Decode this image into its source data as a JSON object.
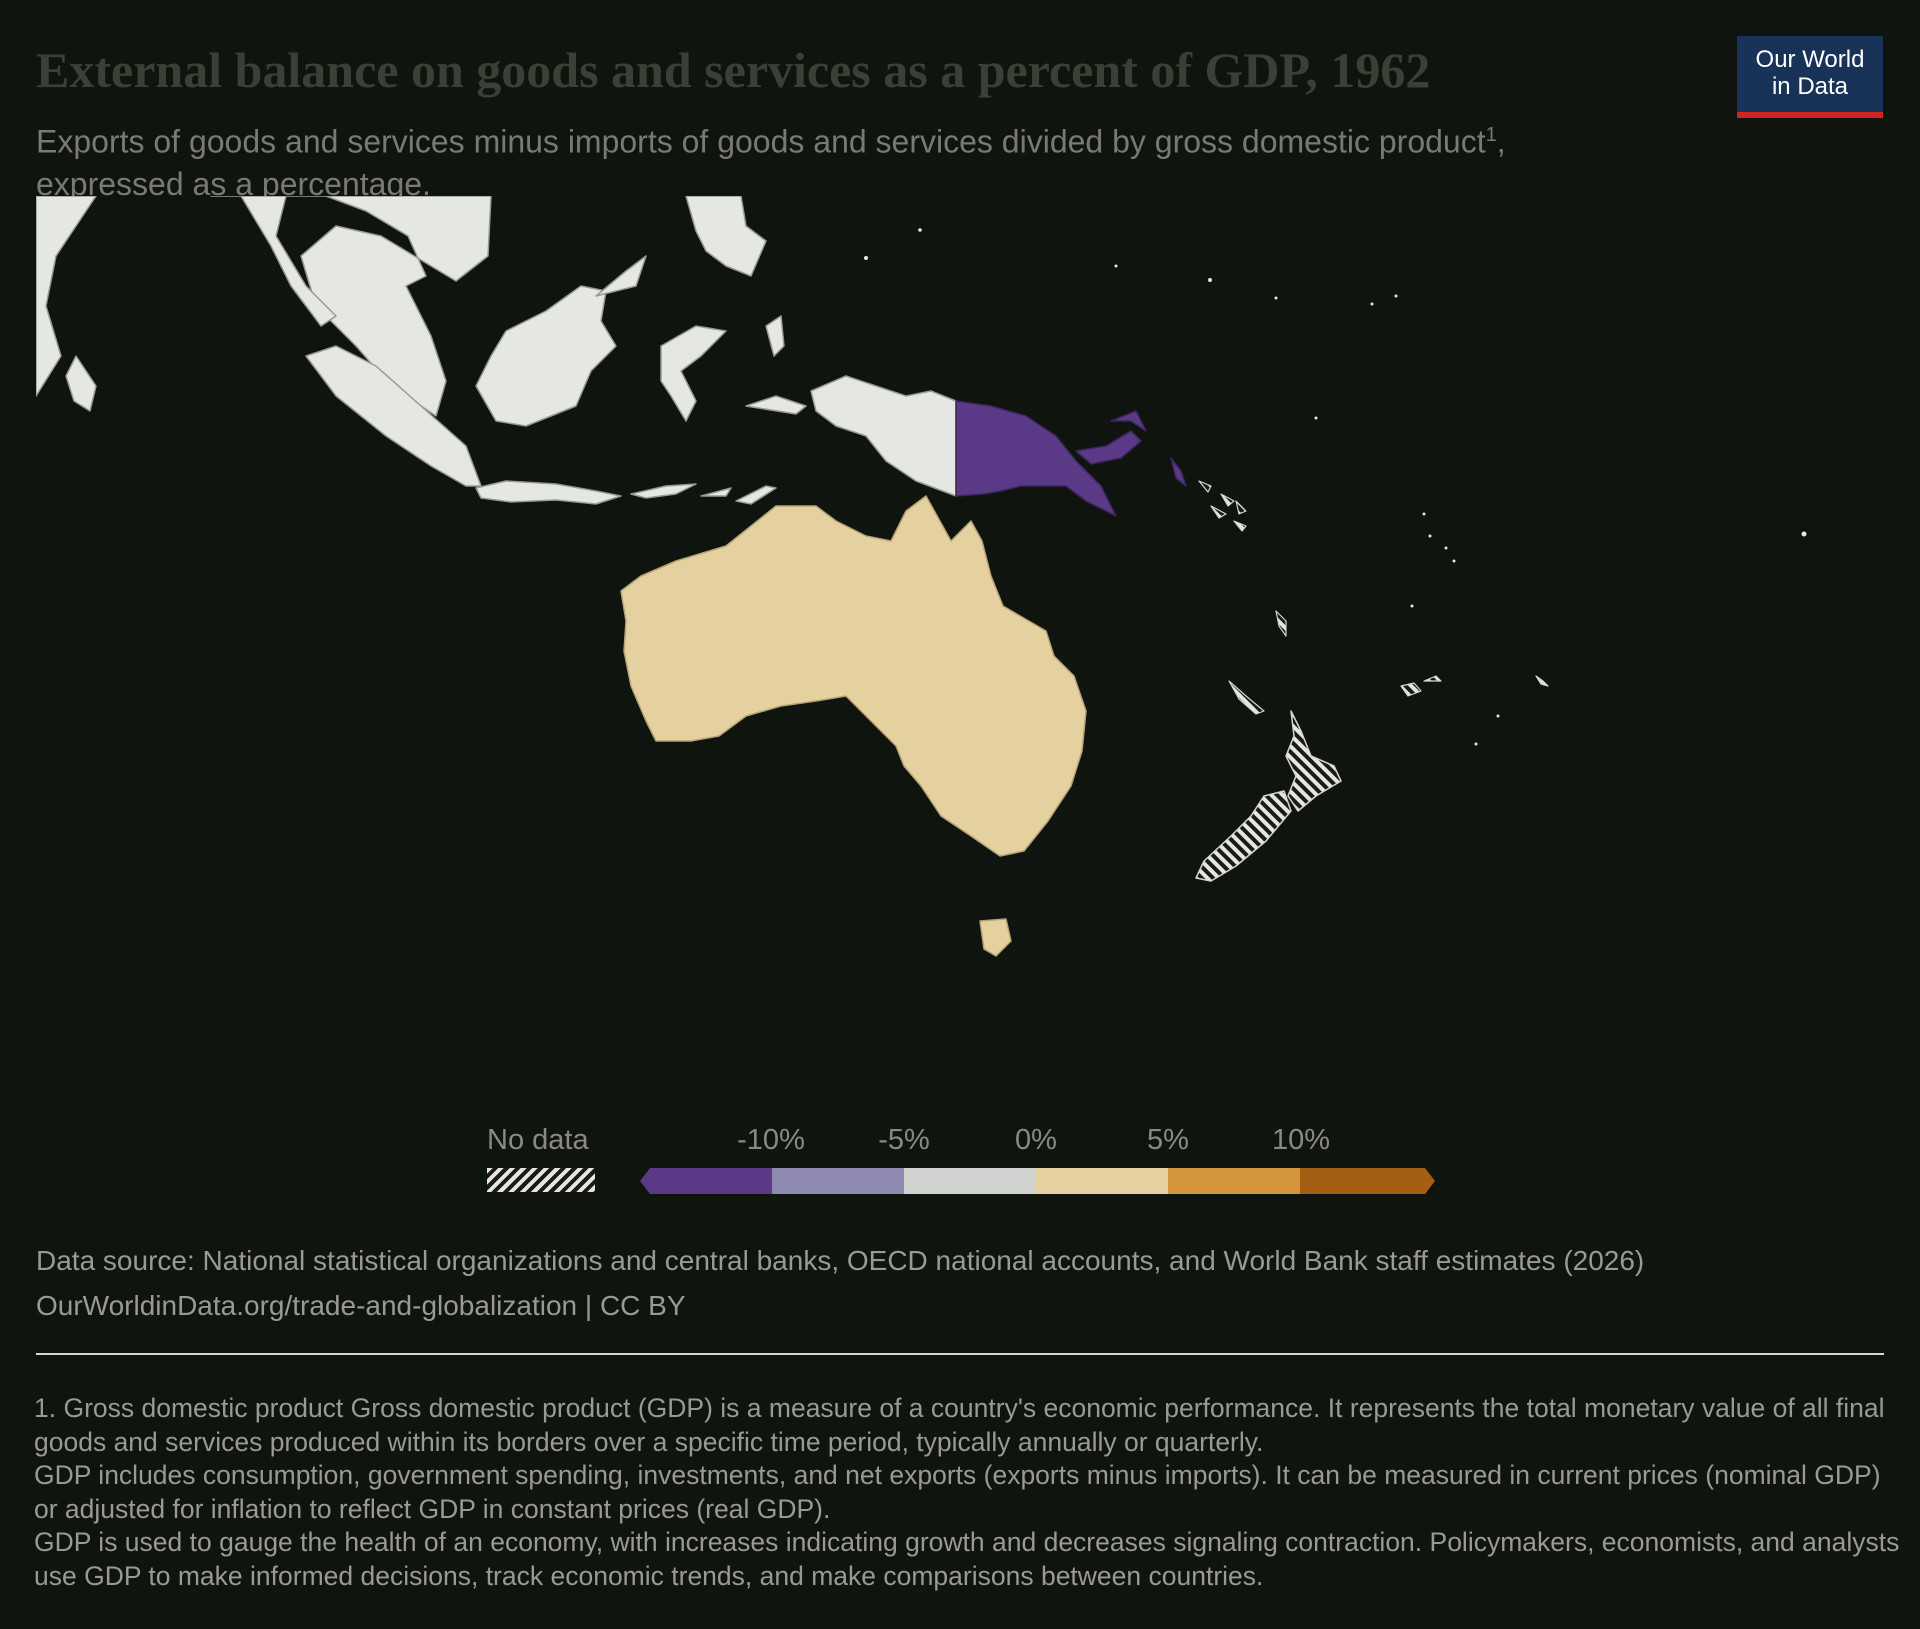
{
  "header": {
    "title": "External balance on goods and services as a percent of GDP, 1962",
    "subtitle_line1": "Exports of goods and services minus imports of goods and services divided by gross domestic product",
    "subtitle_sup": "1",
    "subtitle_comma": ",",
    "subtitle_line2": "expressed as a percentage."
  },
  "logo": {
    "line1": "Our World",
    "line2": "in Data"
  },
  "map": {
    "year": "1962",
    "regions": [
      {
        "name": "Australia",
        "category": "0% to 5%",
        "color": "#e5d1a0"
      },
      {
        "name": "Papua New Guinea",
        "category": "below -10%",
        "color": "#5a3987"
      },
      {
        "name": "New Zealand",
        "category": "No data",
        "color": "hatched"
      },
      {
        "name": "Pacific islands",
        "category": "No data",
        "color": "hatched"
      },
      {
        "name": "Southeast Asia",
        "category": "No data",
        "color": "#e5e8e2"
      }
    ]
  },
  "legend": {
    "no_data_label": "No data",
    "ticks": [
      "-10%",
      "-5%",
      "0%",
      "5%",
      "10%"
    ],
    "colors": [
      "#5a3987",
      "#8d89b0",
      "#cfd2ce",
      "#e5d1a0",
      "#d4953a",
      "#a45f14"
    ]
  },
  "source": {
    "line1": "Data source: National statistical organizations and central banks, OECD national accounts, and World Bank staff estimates (2026)",
    "line2": "OurWorldinData.org/trade-and-globalization | CC BY"
  },
  "footnote": {
    "p1": "1. Gross domestic product Gross domestic product (GDP) is a measure of a country's economic performance. It represents the total monetary value of all final goods and services produced within its borders over a specific time period, typically annually or quarterly.",
    "p2": "GDP includes consumption, government spending, investments, and net exports (exports minus imports). It can be measured in current prices (nominal GDP) or adjusted for inflation to reflect GDP in constant prices (real GDP).",
    "p3": "GDP is used to gauge the health of an economy, with increases indicating growth and decreases signaling contraction. Policymakers, economists, and analysts use GDP to make informed decisions, track economic trends, and make comparisons between countries."
  }
}
